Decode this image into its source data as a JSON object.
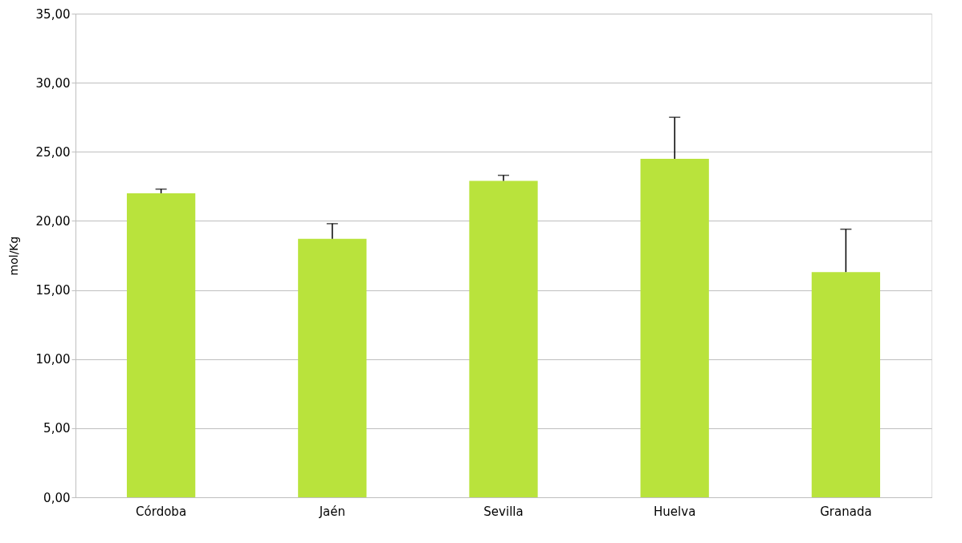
{
  "chart_data": {
    "type": "bar",
    "ylabel": "mol/Kg",
    "categories": [
      "Córdoba",
      "Jaén",
      "Sevilla",
      "Huelva",
      "Granada"
    ],
    "values": [
      22.0,
      18.7,
      22.9,
      24.5,
      16.3
    ],
    "errors": [
      [
        22.0,
        22.3
      ],
      [
        18.7,
        19.8
      ],
      [
        22.9,
        23.3
      ],
      [
        24.5,
        27.5
      ],
      [
        16.3,
        19.4
      ]
    ],
    "color": "#b9e33c",
    "ylim": [
      0,
      35
    ],
    "yticks": [
      {
        "value": 0,
        "label": "0,00"
      },
      {
        "value": 5,
        "label": "5,00"
      },
      {
        "value": 10,
        "label": "10,00"
      },
      {
        "value": 15,
        "label": "15,00"
      },
      {
        "value": 20,
        "label": "20,00"
      },
      {
        "value": 25,
        "label": "25,00"
      },
      {
        "value": 30,
        "label": "30,00"
      },
      {
        "value": 35,
        "label": "35,00"
      }
    ],
    "grid": "y"
  }
}
